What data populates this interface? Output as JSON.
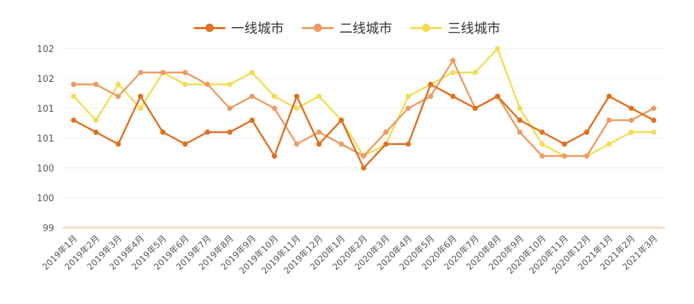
{
  "chart_data": {
    "type": "line",
    "categories": [
      "2019年1月",
      "2019年2月",
      "2019年3月",
      "2019年4月",
      "2019年5月",
      "2019年6月",
      "2019年7月",
      "2019年8月",
      "2019年9月",
      "2019年10月",
      "2019年11月",
      "2019年12月",
      "2020年1月",
      "2020年2月",
      "2020年3月",
      "2020年4月",
      "2020年5月",
      "2020年6月",
      "2020年7月",
      "2020年8月",
      "2020年9月",
      "2020年10月",
      "2020年11月",
      "2020年12月",
      "2021年1月",
      "2021年2月",
      "2021年3月"
    ],
    "y_tick_labels": [
      "102",
      "102",
      "101",
      "101",
      "100",
      "100",
      "99"
    ],
    "ylim": [
      99,
      102
    ],
    "series": [
      {
        "name": "一线城市",
        "color": "#e0701e",
        "values": [
          100.8,
          100.6,
          100.4,
          101.2,
          100.6,
          100.4,
          100.6,
          100.6,
          100.8,
          100.2,
          101.2,
          100.4,
          100.8,
          100.0,
          100.4,
          100.4,
          101.4,
          101.2,
          101.0,
          101.2,
          100.8,
          100.6,
          100.4,
          100.6,
          101.2,
          101.0,
          100.8
        ]
      },
      {
        "name": "二线城市",
        "color": "#ec9c63",
        "values": [
          101.4,
          101.4,
          101.2,
          101.6,
          101.6,
          101.6,
          101.4,
          101.0,
          101.2,
          101.0,
          100.4,
          100.6,
          100.4,
          100.2,
          100.6,
          101.0,
          101.2,
          101.8,
          101.0,
          101.2,
          100.6,
          100.2,
          100.2,
          100.2,
          100.8,
          100.8,
          101.0
        ]
      },
      {
        "name": "三线城市",
        "color": "#f3dc55",
        "values": [
          101.2,
          100.8,
          101.4,
          101.0,
          101.6,
          101.4,
          101.4,
          101.4,
          101.6,
          101.2,
          101.0,
          101.2,
          100.8,
          100.2,
          100.4,
          101.2,
          101.4,
          101.6,
          101.6,
          102.0,
          101.0,
          100.4,
          100.2,
          100.2,
          100.4,
          100.6,
          100.6
        ]
      }
    ],
    "legend_position": "top-center",
    "grid": true,
    "axis_line_color": "#f2b27a",
    "grid_color": "#eeeeee"
  }
}
